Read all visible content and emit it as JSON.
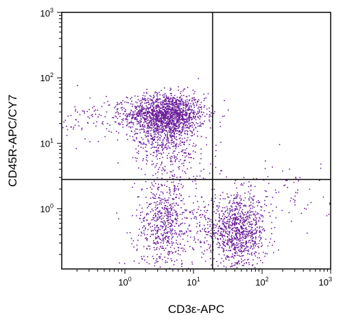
{
  "chart_data": {
    "type": "scatter",
    "xlabel": "CD3ε-APC",
    "ylabel": "CD45R-APC/CY7",
    "x_scale": "log",
    "y_scale": "log",
    "xlim": [
      0.12,
      1000
    ],
    "ylim": [
      0.12,
      1000
    ],
    "x_ticks": [
      {
        "value": 1,
        "base": "10",
        "exp": "0"
      },
      {
        "value": 10,
        "base": "10",
        "exp": "1"
      },
      {
        "value": 100,
        "base": "10",
        "exp": "2"
      },
      {
        "value": 1000,
        "base": "10",
        "exp": "3"
      }
    ],
    "y_ticks": [
      {
        "value": 1,
        "base": "10",
        "exp": "0"
      },
      {
        "value": 10,
        "base": "10",
        "exp": "1"
      },
      {
        "value": 100,
        "base": "10",
        "exp": "2"
      },
      {
        "value": 1000,
        "base": "10",
        "exp": "3"
      }
    ],
    "quadrant_gates": {
      "x": 19,
      "y": 2.8
    },
    "grid": false,
    "point_color": "#6a1b9a",
    "populations": [
      {
        "center": [
          4.0,
          28
        ],
        "spread_decades": [
          0.28,
          0.16
        ],
        "count": 1500
      },
      {
        "center": [
          3.5,
          13
        ],
        "spread_decades": [
          0.22,
          0.22
        ],
        "count": 350
      },
      {
        "center": [
          0.5,
          25
        ],
        "spread_decades": [
          0.35,
          0.18
        ],
        "count": 120
      },
      {
        "center": [
          3.8,
          0.6
        ],
        "spread_decades": [
          0.22,
          0.35
        ],
        "count": 650
      },
      {
        "center": [
          45,
          0.45
        ],
        "spread_decades": [
          0.2,
          0.28
        ],
        "count": 900
      },
      {
        "center": [
          20,
          0.5
        ],
        "spread_decades": [
          0.15,
          0.25
        ],
        "count": 120
      },
      {
        "center": [
          200,
          1.5
        ],
        "spread_decades": [
          0.35,
          0.3
        ],
        "count": 80
      },
      {
        "center": [
          6,
          5
        ],
        "spread_decades": [
          0.3,
          0.2
        ],
        "count": 120
      }
    ]
  }
}
